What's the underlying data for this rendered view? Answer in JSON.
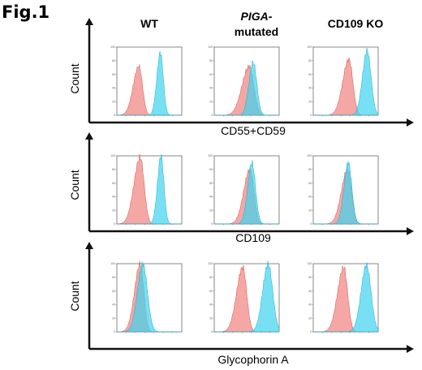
{
  "figure_label": "Fig.1",
  "columns": [
    {
      "line1": "WT",
      "line2": ""
    },
    {
      "line1": "PIGA",
      "line1_suffix": "-",
      "line2": "mutated"
    },
    {
      "line1": "CD109 KO",
      "line2": ""
    }
  ],
  "y_axis_label": "Count",
  "rows": [
    {
      "x_axis_label": "CD55+CD59"
    },
    {
      "x_axis_label": "CD109"
    },
    {
      "x_axis_label": "Glycophorin A"
    }
  ],
  "colors": {
    "control": "#f08a86",
    "sample": "#3fd3ee",
    "axis": "#111111"
  },
  "chart_data": {
    "type": "area",
    "description_of_encoding": "flow cytometry histograms; x is log fluorescence position (0-1 across the panel), y is normalized count (0-100)",
    "y_ticks": [
      "100",
      "80",
      "60",
      "40",
      "20",
      "0"
    ],
    "ylim": [
      0,
      100
    ],
    "xlim": [
      0,
      1
    ],
    "panels": [
      {
        "row": 0,
        "col": 0,
        "control": {
          "center": 0.34,
          "width": 0.055,
          "height": 72
        },
        "sample": {
          "center": 0.67,
          "width": 0.045,
          "height": 92
        }
      },
      {
        "row": 0,
        "col": 1,
        "control": {
          "center": 0.54,
          "width": 0.07,
          "height": 72
        },
        "sample": {
          "center": 0.6,
          "width": 0.055,
          "height": 78
        }
      },
      {
        "row": 0,
        "col": 2,
        "control": {
          "center": 0.55,
          "width": 0.06,
          "height": 82
        },
        "sample": {
          "center": 0.83,
          "width": 0.06,
          "height": 95
        }
      },
      {
        "row": 1,
        "col": 0,
        "control": {
          "center": 0.36,
          "width": 0.06,
          "height": 98
        },
        "sample": {
          "center": 0.68,
          "width": 0.045,
          "height": 100
        }
      },
      {
        "row": 1,
        "col": 1,
        "control": {
          "center": 0.55,
          "width": 0.06,
          "height": 80
        },
        "sample": {
          "center": 0.58,
          "width": 0.055,
          "height": 90
        }
      },
      {
        "row": 1,
        "col": 2,
        "control": {
          "center": 0.53,
          "width": 0.06,
          "height": 80
        },
        "sample": {
          "center": 0.54,
          "width": 0.055,
          "height": 90
        }
      },
      {
        "row": 2,
        "col": 0,
        "control": {
          "center": 0.36,
          "width": 0.055,
          "height": 100
        },
        "sample": {
          "center": 0.4,
          "width": 0.07,
          "height": 100
        }
      },
      {
        "row": 2,
        "col": 1,
        "control": {
          "center": 0.44,
          "width": 0.06,
          "height": 95
        },
        "sample": {
          "center": 0.83,
          "width": 0.07,
          "height": 100
        }
      },
      {
        "row": 2,
        "col": 2,
        "control": {
          "center": 0.47,
          "width": 0.06,
          "height": 95
        },
        "sample": {
          "center": 0.82,
          "width": 0.07,
          "height": 98
        }
      }
    ]
  }
}
